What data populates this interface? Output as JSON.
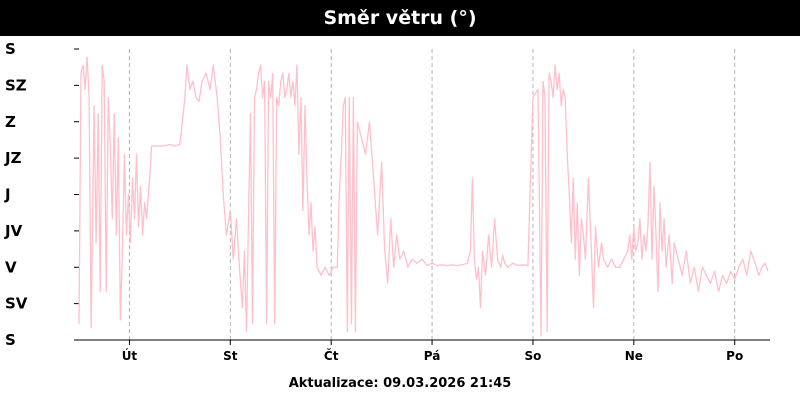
{
  "title": "Směr větru (°)",
  "footer": {
    "label": "Aktualizace:",
    "timestamp": "09.03.2026 21:45"
  },
  "chart_data": {
    "type": "line",
    "title": "Směr větru (°)",
    "y_ticks": [
      "S",
      "SV",
      "V",
      "JV",
      "J",
      "JZ",
      "Z",
      "SZ",
      "S"
    ],
    "ylim": [
      0,
      360
    ],
    "xlim": [
      0,
      6.85
    ],
    "x_tick_labels": [
      "Út",
      "St",
      "Čt",
      "Pá",
      "So",
      "Ne",
      "Po"
    ],
    "x_tick_positions": [
      0.5,
      1.5,
      2.5,
      3.5,
      4.5,
      5.5,
      6.5
    ],
    "grid": {
      "x": true,
      "y": false
    },
    "line_color": "#ffc0cb",
    "series": [
      {
        "values": [
          [
            0.0,
            20
          ],
          [
            0.02,
            330
          ],
          [
            0.04,
            340
          ],
          [
            0.06,
            310
          ],
          [
            0.08,
            350
          ],
          [
            0.1,
            300
          ],
          [
            0.12,
            15
          ],
          [
            0.15,
            290
          ],
          [
            0.17,
            120
          ],
          [
            0.19,
            280
          ],
          [
            0.21,
            60
          ],
          [
            0.23,
            340
          ],
          [
            0.25,
            320
          ],
          [
            0.27,
            60
          ],
          [
            0.29,
            300
          ],
          [
            0.31,
            240
          ],
          [
            0.33,
            150
          ],
          [
            0.35,
            280
          ],
          [
            0.37,
            130
          ],
          [
            0.39,
            250
          ],
          [
            0.41,
            25
          ],
          [
            0.43,
            110
          ],
          [
            0.45,
            230
          ],
          [
            0.47,
            130
          ],
          [
            0.49,
            180
          ],
          [
            0.51,
            120
          ],
          [
            0.53,
            200
          ],
          [
            0.55,
            150
          ],
          [
            0.57,
            230
          ],
          [
            0.59,
            140
          ],
          [
            0.61,
            190
          ],
          [
            0.63,
            130
          ],
          [
            0.65,
            170
          ],
          [
            0.67,
            150
          ],
          [
            0.7,
            200
          ],
          [
            0.72,
            240
          ],
          [
            0.85,
            240
          ],
          [
            0.9,
            242
          ],
          [
            0.95,
            240
          ],
          [
            1.0,
            242
          ],
          [
            1.05,
            300
          ],
          [
            1.07,
            340
          ],
          [
            1.1,
            310
          ],
          [
            1.13,
            320
          ],
          [
            1.16,
            300
          ],
          [
            1.19,
            295
          ],
          [
            1.22,
            320
          ],
          [
            1.26,
            330
          ],
          [
            1.3,
            310
          ],
          [
            1.33,
            340
          ],
          [
            1.37,
            300
          ],
          [
            1.4,
            250
          ],
          [
            1.43,
            180
          ],
          [
            1.46,
            130
          ],
          [
            1.5,
            160
          ],
          [
            1.53,
            100
          ],
          [
            1.56,
            150
          ],
          [
            1.59,
            90
          ],
          [
            1.62,
            40
          ],
          [
            1.64,
            110
          ],
          [
            1.66,
            10
          ],
          [
            1.68,
            150
          ],
          [
            1.7,
            280
          ],
          [
            1.72,
            20
          ],
          [
            1.74,
            300
          ],
          [
            1.76,
            310
          ],
          [
            1.78,
            330
          ],
          [
            1.8,
            340
          ],
          [
            1.82,
            300
          ],
          [
            1.84,
            320
          ],
          [
            1.86,
            20
          ],
          [
            1.88,
            320
          ],
          [
            1.9,
            300
          ],
          [
            1.92,
            330
          ],
          [
            1.94,
            20
          ],
          [
            1.96,
            300
          ],
          [
            1.98,
            290
          ],
          [
            2.0,
            320
          ],
          [
            2.02,
            330
          ],
          [
            2.04,
            300
          ],
          [
            2.06,
            310
          ],
          [
            2.08,
            330
          ],
          [
            2.1,
            300
          ],
          [
            2.12,
            320
          ],
          [
            2.14,
            290
          ],
          [
            2.16,
            340
          ],
          [
            2.18,
            230
          ],
          [
            2.2,
            300
          ],
          [
            2.22,
            160
          ],
          [
            2.24,
            290
          ],
          [
            2.26,
            200
          ],
          [
            2.28,
            130
          ],
          [
            2.3,
            170
          ],
          [
            2.32,
            110
          ],
          [
            2.34,
            140
          ],
          [
            2.36,
            90
          ],
          [
            2.4,
            80
          ],
          [
            2.44,
            90
          ],
          [
            2.48,
            80
          ],
          [
            2.52,
            90
          ],
          [
            2.56,
            90
          ],
          [
            2.58,
            180
          ],
          [
            2.6,
            230
          ],
          [
            2.62,
            290
          ],
          [
            2.64,
            300
          ],
          [
            2.66,
            10
          ],
          [
            2.68,
            300
          ],
          [
            2.7,
            20
          ],
          [
            2.72,
            300
          ],
          [
            2.74,
            10
          ],
          [
            2.76,
            270
          ],
          [
            2.8,
            250
          ],
          [
            2.84,
            230
          ],
          [
            2.88,
            270
          ],
          [
            2.92,
            200
          ],
          [
            2.96,
            130
          ],
          [
            3.0,
            220
          ],
          [
            3.03,
            110
          ],
          [
            3.06,
            70
          ],
          [
            3.09,
            150
          ],
          [
            3.12,
            90
          ],
          [
            3.15,
            130
          ],
          [
            3.18,
            100
          ],
          [
            3.22,
            110
          ],
          [
            3.26,
            90
          ],
          [
            3.3,
            100
          ],
          [
            3.35,
            95
          ],
          [
            3.4,
            100
          ],
          [
            3.45,
            92
          ],
          [
            3.5,
            95
          ],
          [
            3.55,
            92
          ],
          [
            3.6,
            93
          ],
          [
            3.65,
            92
          ],
          [
            3.7,
            93
          ],
          [
            3.75,
            92
          ],
          [
            3.8,
            93
          ],
          [
            3.85,
            95
          ],
          [
            3.88,
            110
          ],
          [
            3.9,
            200
          ],
          [
            3.92,
            100
          ],
          [
            3.94,
            75
          ],
          [
            3.96,
            90
          ],
          [
            3.98,
            40
          ],
          [
            4.0,
            110
          ],
          [
            4.03,
            80
          ],
          [
            4.06,
            130
          ],
          [
            4.09,
            90
          ],
          [
            4.12,
            150
          ],
          [
            4.15,
            100
          ],
          [
            4.18,
            90
          ],
          [
            4.2,
            105
          ],
          [
            4.22,
            95
          ],
          [
            4.25,
            90
          ],
          [
            4.3,
            95
          ],
          [
            4.35,
            92
          ],
          [
            4.4,
            93
          ],
          [
            4.45,
            92
          ],
          [
            4.5,
            300
          ],
          [
            4.55,
            310
          ],
          [
            4.58,
            5
          ],
          [
            4.6,
            320
          ],
          [
            4.62,
            300
          ],
          [
            4.64,
            10
          ],
          [
            4.66,
            330
          ],
          [
            4.68,
            320
          ],
          [
            4.7,
            300
          ],
          [
            4.72,
            340
          ],
          [
            4.74,
            310
          ],
          [
            4.76,
            330
          ],
          [
            4.78,
            290
          ],
          [
            4.8,
            310
          ],
          [
            4.82,
            300
          ],
          [
            4.84,
            230
          ],
          [
            4.86,
            180
          ],
          [
            4.88,
            120
          ],
          [
            4.9,
            200
          ],
          [
            4.92,
            100
          ],
          [
            4.94,
            170
          ],
          [
            4.96,
            80
          ],
          [
            4.98,
            150
          ],
          [
            5.0,
            130
          ],
          [
            5.02,
            100
          ],
          [
            5.05,
            200
          ],
          [
            5.08,
            110
          ],
          [
            5.1,
            40
          ],
          [
            5.12,
            140
          ],
          [
            5.15,
            90
          ],
          [
            5.18,
            120
          ],
          [
            5.2,
            100
          ],
          [
            5.24,
            90
          ],
          [
            5.28,
            100
          ],
          [
            5.32,
            90
          ],
          [
            5.36,
            90
          ],
          [
            5.4,
            100
          ],
          [
            5.44,
            110
          ],
          [
            5.46,
            130
          ],
          [
            5.48,
            100
          ],
          [
            5.5,
            140
          ],
          [
            5.52,
            110
          ],
          [
            5.54,
            120
          ],
          [
            5.56,
            150
          ],
          [
            5.58,
            100
          ],
          [
            5.6,
            130
          ],
          [
            5.62,
            110
          ],
          [
            5.64,
            140
          ],
          [
            5.66,
            220
          ],
          [
            5.68,
            100
          ],
          [
            5.7,
            190
          ],
          [
            5.72,
            130
          ],
          [
            5.74,
            60
          ],
          [
            5.76,
            170
          ],
          [
            5.78,
            110
          ],
          [
            5.8,
            150
          ],
          [
            5.82,
            90
          ],
          [
            5.85,
            130
          ],
          [
            5.88,
            70
          ],
          [
            5.9,
            120
          ],
          [
            5.94,
            100
          ],
          [
            5.98,
            80
          ],
          [
            6.02,
            110
          ],
          [
            6.06,
            70
          ],
          [
            6.1,
            90
          ],
          [
            6.14,
            60
          ],
          [
            6.18,
            90
          ],
          [
            6.22,
            80
          ],
          [
            6.26,
            70
          ],
          [
            6.3,
            85
          ],
          [
            6.34,
            60
          ],
          [
            6.38,
            80
          ],
          [
            6.42,
            70
          ],
          [
            6.46,
            85
          ],
          [
            6.5,
            75
          ],
          [
            6.54,
            90
          ],
          [
            6.58,
            100
          ],
          [
            6.62,
            80
          ],
          [
            6.66,
            110
          ],
          [
            6.7,
            95
          ],
          [
            6.74,
            80
          ],
          [
            6.77,
            90
          ],
          [
            6.8,
            95
          ],
          [
            6.83,
            85
          ]
        ]
      }
    ]
  }
}
